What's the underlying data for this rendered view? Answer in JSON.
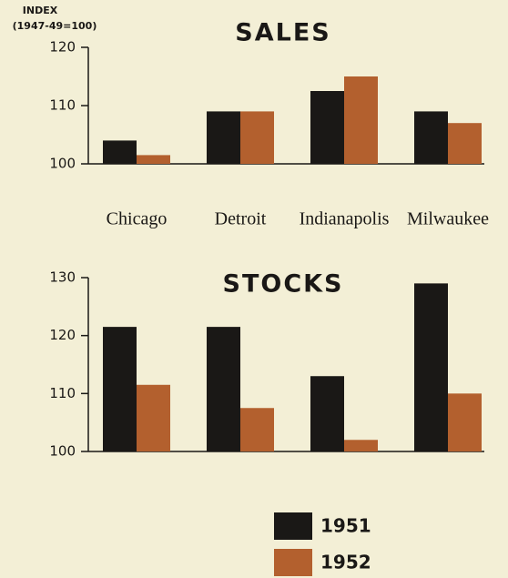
{
  "chart_data": {
    "type": "bar",
    "y_label_lines": [
      "INDEX",
      "(1947-49=100)"
    ],
    "categories": [
      "Chicago",
      "Detroit",
      "Indianapolis",
      "Milwaukee"
    ],
    "series": [
      {
        "name": "1951",
        "color": "#1a1816"
      },
      {
        "name": "1952",
        "color": "#b3602e"
      }
    ],
    "panels": [
      {
        "title": "SALES",
        "ylim": [
          100,
          120
        ],
        "yticks": [
          100,
          110,
          120
        ],
        "series": [
          {
            "values": [
              104,
              109,
              112.5,
              109
            ]
          },
          {
            "values": [
              101.5,
              109,
              115,
              107
            ]
          }
        ]
      },
      {
        "title": "STOCKS",
        "ylim": [
          100,
          130
        ],
        "yticks": [
          100,
          110,
          120,
          130
        ],
        "series": [
          {
            "values": [
              121.5,
              121.5,
              113,
              129
            ]
          },
          {
            "values": [
              111.5,
              107.5,
              102,
              110
            ]
          }
        ]
      }
    ]
  }
}
